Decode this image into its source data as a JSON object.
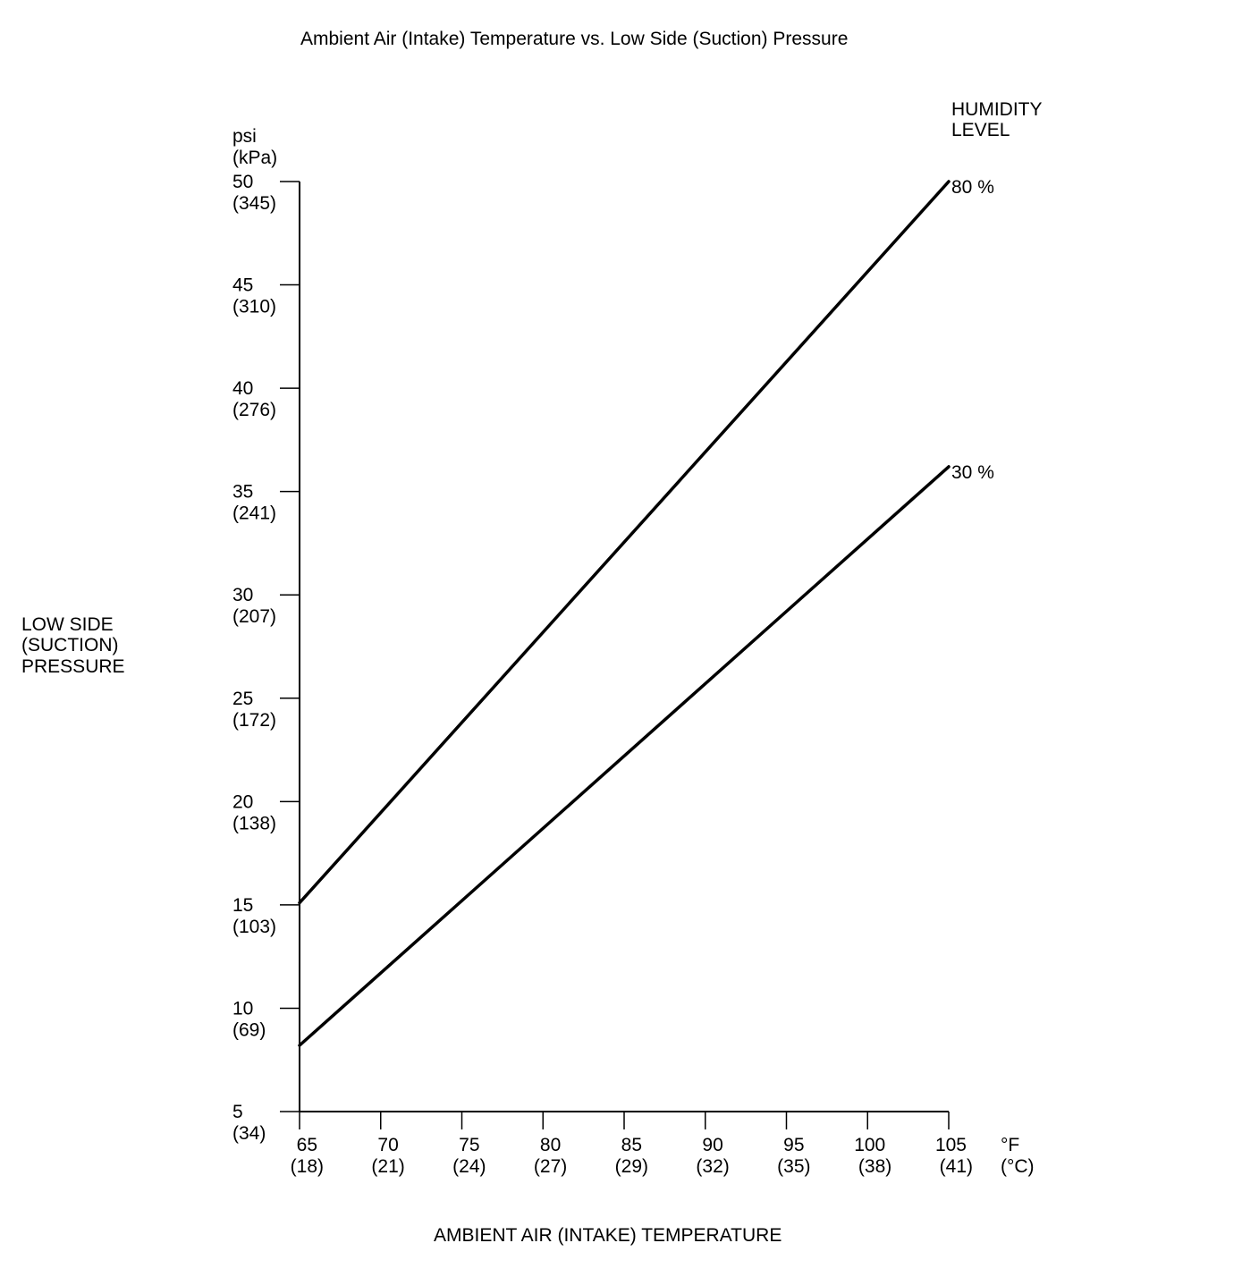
{
  "chart_data": {
    "type": "line",
    "title": "Ambient Air (Intake) Temperature vs. Low Side (Suction) Pressure",
    "xlabel": "AMBIENT AIR (INTAKE) TEMPERATURE",
    "ylabel_lines": [
      "LOW SIDE",
      "(SUCTION)",
      "PRESSURE"
    ],
    "y_unit_lines": [
      "psi",
      "(kPa)"
    ],
    "x_unit_lines": [
      "°F",
      "(°C)"
    ],
    "legend_title_lines": [
      "HUMIDITY",
      "LEVEL"
    ],
    "xlim": [
      65,
      105
    ],
    "ylim": [
      5,
      50
    ],
    "x_ticks": [
      {
        "value": 65,
        "label": "65",
        "sub": "(18)"
      },
      {
        "value": 70,
        "label": "70",
        "sub": "(21)"
      },
      {
        "value": 75,
        "label": "75",
        "sub": "(24)"
      },
      {
        "value": 80,
        "label": "80",
        "sub": "(27)"
      },
      {
        "value": 85,
        "label": "85",
        "sub": "(29)"
      },
      {
        "value": 90,
        "label": "90",
        "sub": "(32)"
      },
      {
        "value": 95,
        "label": "95",
        "sub": "(35)"
      },
      {
        "value": 100,
        "label": "100",
        "sub": "(38)"
      },
      {
        "value": 105,
        "label": "105",
        "sub": "(41)"
      }
    ],
    "y_ticks": [
      {
        "value": 5,
        "label": "5",
        "sub": "(34)"
      },
      {
        "value": 10,
        "label": "10",
        "sub": "(69)"
      },
      {
        "value": 15,
        "label": "15",
        "sub": "(103)"
      },
      {
        "value": 20,
        "label": "20",
        "sub": "(138)"
      },
      {
        "value": 25,
        "label": "25",
        "sub": "(172)"
      },
      {
        "value": 30,
        "label": "30",
        "sub": "(207)"
      },
      {
        "value": 35,
        "label": "35",
        "sub": "(241)"
      },
      {
        "value": 40,
        "label": "40",
        "sub": "(276)"
      },
      {
        "value": 45,
        "label": "45",
        "sub": "(310)"
      },
      {
        "value": 50,
        "label": "50",
        "sub": "(345)"
      }
    ],
    "series": [
      {
        "name": "80 %",
        "x": [
          65,
          105
        ],
        "y": [
          15.1,
          50
        ]
      },
      {
        "name": "30 %",
        "x": [
          65,
          105
        ],
        "y": [
          8.2,
          36.2
        ]
      }
    ]
  }
}
